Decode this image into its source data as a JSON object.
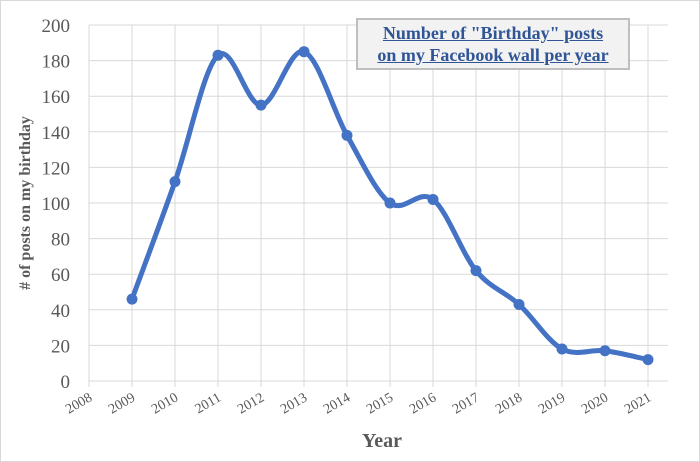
{
  "chart_data": {
    "type": "line",
    "title": "Number of \"Birthday\" posts on my Facebook wall per year",
    "title_lines": [
      "Number of \"Birthday\" posts",
      "on my Facebook wall per year"
    ],
    "xlabel": "Year",
    "ylabel": "# of posts on my birthday",
    "categories": [
      "2008",
      "2009",
      "2010",
      "2011",
      "2012",
      "2013",
      "2014",
      "2015",
      "2016",
      "2017",
      "2018",
      "2019",
      "2020",
      "2021"
    ],
    "x": [
      2009,
      2010,
      2011,
      2012,
      2013,
      2014,
      2015,
      2016,
      2017,
      2018,
      2019,
      2020,
      2021
    ],
    "series": [
      {
        "name": "Birthday posts",
        "color": "#4472c4",
        "smoothed": true,
        "values": [
          46,
          112,
          183,
          155,
          185,
          138,
          100,
          102,
          62,
          43,
          18,
          17,
          12
        ]
      }
    ],
    "ylim": [
      0,
      200
    ],
    "yticks": [
      0,
      20,
      40,
      60,
      80,
      100,
      120,
      140,
      160,
      180,
      200
    ],
    "grid": true,
    "legend": null
  },
  "labels": {
    "title_line1": "Number of \"Birthday\" posts",
    "title_line2": "on my Facebook wall per year",
    "xlabel": "Year",
    "ylabel": "# of posts on my birthday"
  },
  "colors": {
    "series": "#4472c4",
    "title": "#2f5597",
    "grid": "#d9d9d9",
    "axis_text": "#595959"
  }
}
